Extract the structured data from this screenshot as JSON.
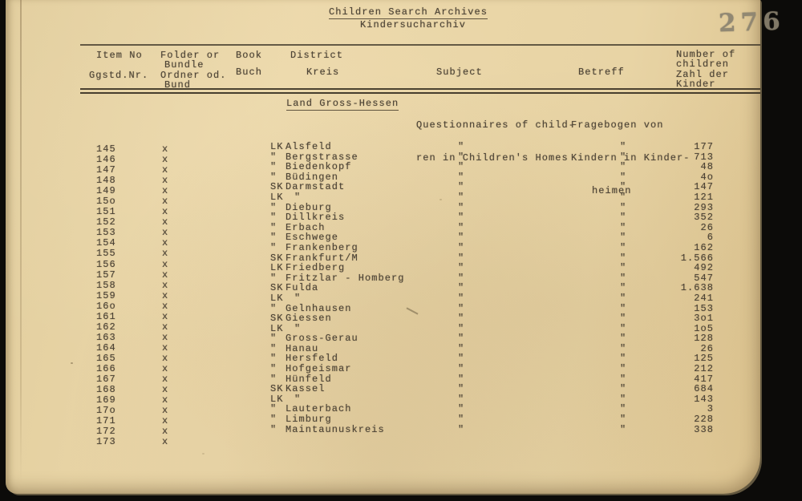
{
  "page": {
    "title": "Children Search Archives",
    "subtitle": "Kindersucharchiv",
    "page_number_stamp": "276"
  },
  "colors": {
    "paper": "#e8d4a5",
    "ink": "#4d4436",
    "stamp": "#8b8370",
    "scan_background": "#0c0b09"
  },
  "table": {
    "headers": {
      "item_no": [
        "Item No",
        "Ggstd.Nr."
      ],
      "folder": [
        "Folder or",
        "Bundle",
        "Ordner od.",
        "Bund"
      ],
      "book": [
        "Book",
        "Buch"
      ],
      "district": [
        "District",
        "Kreis"
      ],
      "subject": "Subject",
      "betreff": "Betreff",
      "number": [
        "Number of",
        "children",
        "Zahl der",
        "Kinder"
      ]
    },
    "section": {
      "region": "Land Gross-Hessen",
      "subject_lines": [
        "Questionnaires of child-",
        "ren in Children's Homes"
      ],
      "betreff_lines": [
        "Fragebogen von",
        "Kindern in Kinder-",
        "heimen"
      ]
    },
    "rows": [
      {
        "item": "145",
        "folder": "x",
        "book": "LK",
        "district": "Alsfeld",
        "subject": "\"",
        "betreff": "\"",
        "children": "177"
      },
      {
        "item": "146",
        "folder": "x",
        "book": "\"",
        "district": "Bergstrasse",
        "subject": "\"",
        "betreff": "\"",
        "children": "713"
      },
      {
        "item": "147",
        "folder": "x",
        "book": "\"",
        "district": "Biedenkopf",
        "subject": "\"",
        "betreff": "\"",
        "children": "48"
      },
      {
        "item": "148",
        "folder": "x",
        "book": "\"",
        "district": "Büdingen",
        "subject": "\"",
        "betreff": "\"",
        "children": "4o"
      },
      {
        "item": "149",
        "folder": "x",
        "book": "SK",
        "district": "Darmstadt",
        "subject": "\"",
        "betreff": "\"",
        "children": "147"
      },
      {
        "item": "15o",
        "folder": "x",
        "book": "LK",
        "district": "\"",
        "subject": "\"",
        "betreff": "\"",
        "children": "121"
      },
      {
        "item": "151",
        "folder": "x",
        "book": "\"",
        "district": "Dieburg",
        "subject": "\"",
        "betreff": "\"",
        "children": "293"
      },
      {
        "item": "152",
        "folder": "x",
        "book": "\"",
        "district": "Dillkreis",
        "subject": "\"",
        "betreff": "\"",
        "children": "352"
      },
      {
        "item": "153",
        "folder": "x",
        "book": "\"",
        "district": "Erbach",
        "subject": "\"",
        "betreff": "\"",
        "children": "26"
      },
      {
        "item": "154",
        "folder": "x",
        "book": "\"",
        "district": "Eschwege",
        "subject": "\"",
        "betreff": "\"",
        "children": "6"
      },
      {
        "item": "155",
        "folder": "x",
        "book": "\"",
        "district": "Frankenberg",
        "subject": "\"",
        "betreff": "\"",
        "children": "162"
      },
      {
        "item": "156",
        "folder": "x",
        "book": "SK",
        "district": "Frankfurt/M",
        "subject": "\"",
        "betreff": "\"",
        "children": "1.566"
      },
      {
        "item": "157",
        "folder": "x",
        "book": "LK",
        "district": "Friedberg",
        "subject": "\"",
        "betreff": "\"",
        "children": "492"
      },
      {
        "item": "158",
        "folder": "x",
        "book": "\"",
        "district": "Fritzlar - Homberg",
        "subject": "\"",
        "betreff": "\"",
        "children": "547"
      },
      {
        "item": "159",
        "folder": "x",
        "book": "SK",
        "district": "Fulda",
        "subject": "\"",
        "betreff": "\"",
        "children": "1.638"
      },
      {
        "item": "16o",
        "folder": "x",
        "book": "LK",
        "district": "\"",
        "subject": "\"",
        "betreff": "\"",
        "children": "241"
      },
      {
        "item": "161",
        "folder": "x",
        "book": "\"",
        "district": "Gelnhausen",
        "subject": "\"",
        "betreff": "\"",
        "children": "153"
      },
      {
        "item": "162",
        "folder": "x",
        "book": "SK",
        "district": "Giessen",
        "subject": "\"",
        "betreff": "\"",
        "children": "3o1"
      },
      {
        "item": "163",
        "folder": "x",
        "book": "LK",
        "district": "\"",
        "subject": "\"",
        "betreff": "\"",
        "children": "1o5"
      },
      {
        "item": "164",
        "folder": "x",
        "book": "\"",
        "district": "Gross-Gerau",
        "subject": "\"",
        "betreff": "\"",
        "children": "128"
      },
      {
        "item": "165",
        "folder": "x",
        "book": "\"",
        "district": "Hanau",
        "subject": "\"",
        "betreff": "\"",
        "children": "26"
      },
      {
        "item": "166",
        "folder": "x",
        "book": "\"",
        "district": "Hersfeld",
        "subject": "\"",
        "betreff": "\"",
        "children": "125"
      },
      {
        "item": "167",
        "folder": "x",
        "book": "\"",
        "district": "Hofgeismar",
        "subject": "\"",
        "betreff": "\"",
        "children": "212"
      },
      {
        "item": "168",
        "folder": "x",
        "book": "\"",
        "district": "Hünfeld",
        "subject": "\"",
        "betreff": "\"",
        "children": "417"
      },
      {
        "item": "169",
        "folder": "x",
        "book": "SK",
        "district": "Kassel",
        "subject": "\"",
        "betreff": "\"",
        "children": "684"
      },
      {
        "item": "17o",
        "folder": "x",
        "book": "LK",
        "district": "\"",
        "subject": "\"",
        "betreff": "\"",
        "children": "143"
      },
      {
        "item": "171",
        "folder": "x",
        "book": "\"",
        "district": "Lauterbach",
        "subject": "\"",
        "betreff": "\"",
        "children": "3"
      },
      {
        "item": "172",
        "folder": "x",
        "book": "\"",
        "district": "Limburg",
        "subject": "\"",
        "betreff": "\"",
        "children": "228"
      },
      {
        "item": "173",
        "folder": "x",
        "book": "\"",
        "district": "Maintaunuskreis",
        "subject": "\"",
        "betreff": "\"",
        "children": "338"
      }
    ]
  }
}
